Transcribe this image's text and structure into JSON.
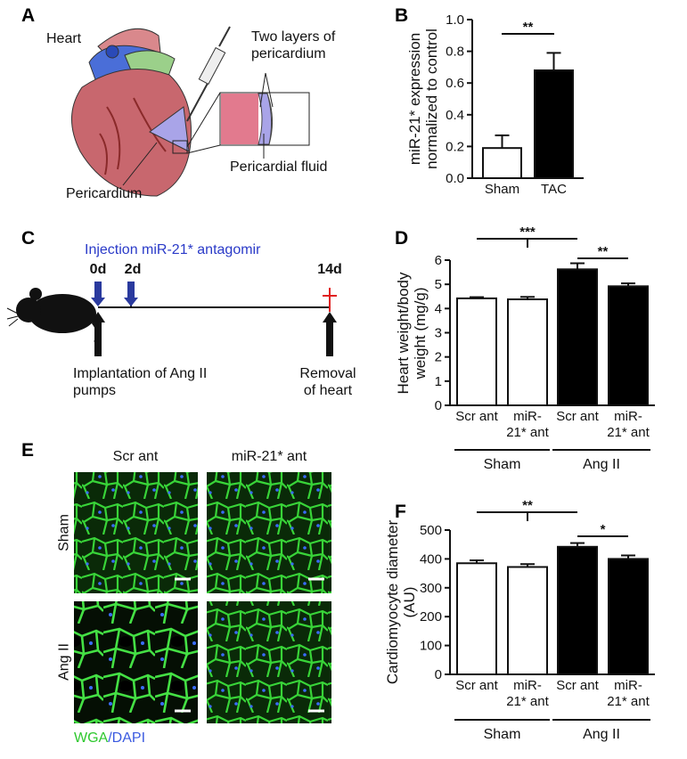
{
  "panel_labels": [
    "A",
    "B",
    "C",
    "D",
    "E",
    "F"
  ],
  "panel_a": {
    "heart": "Heart",
    "layers": "Two layers of pericardium",
    "fluid": "Pericardial fluid",
    "pericardium": "Pericardium"
  },
  "panel_c": {
    "injection": "Injection miR-21* antagomir",
    "days": [
      "0d",
      "2d",
      "14d"
    ],
    "implantation": "Implantation of Ang II pumps",
    "removal": "Removal of heart"
  },
  "panel_e": {
    "columns": [
      "Scr ant",
      "miR-21* ant"
    ],
    "rows": [
      "Sham",
      "Ang II"
    ],
    "stain": [
      "WGA",
      "/DAPI"
    ]
  },
  "chart_data": [
    {
      "type": "bar",
      "ylabel": "miR-21* expression normalized to control",
      "categories": [
        "Sham",
        "TAC"
      ],
      "values": [
        0.19,
        0.68
      ],
      "errors": [
        0.08,
        0.11
      ],
      "colors": [
        "#ffffff",
        "#000000"
      ],
      "ylim": [
        0,
        1
      ],
      "yticks": [
        {
          "value": 0,
          "label": "0.0"
        },
        0.2,
        0.4,
        0.6,
        0.8,
        {
          "value": 1,
          "label": "1.0"
        }
      ],
      "significance": [
        "**"
      ]
    },
    {
      "type": "bar",
      "ylabel": "Heart weight/body weight (mg/g)",
      "categories": [
        "Scr ant",
        "miR-21* ant",
        "Scr ant",
        "miR-21* ant"
      ],
      "values": [
        4.42,
        4.38,
        5.62,
        4.92
      ],
      "errors": [
        0.05,
        0.1,
        0.25,
        0.12
      ],
      "colors": [
        "#ffffff",
        "#ffffff",
        "#000000",
        "#000000"
      ],
      "ylim": [
        0,
        6
      ],
      "yticks": [
        0,
        1,
        2,
        3,
        4,
        5,
        6
      ],
      "significance": [
        "***",
        "**"
      ],
      "groups": [
        "Sham",
        "Ang II"
      ]
    },
    {
      "type": "bar",
      "ylabel": "Cardiomyocyte diameter (AU)",
      "categories": [
        "Scr ant",
        "miR-21* ant",
        "Scr ant",
        "miR-21* ant"
      ],
      "values": [
        385,
        372,
        442,
        400
      ],
      "errors": [
        10,
        10,
        13,
        12
      ],
      "colors": [
        "#ffffff",
        "#ffffff",
        "#000000",
        "#000000"
      ],
      "ylim": [
        0,
        500
      ],
      "yticks": [
        0,
        100,
        200,
        300,
        400,
        500
      ],
      "significance": [
        "**",
        "*"
      ],
      "groups": [
        "Sham",
        "Ang II"
      ]
    }
  ]
}
